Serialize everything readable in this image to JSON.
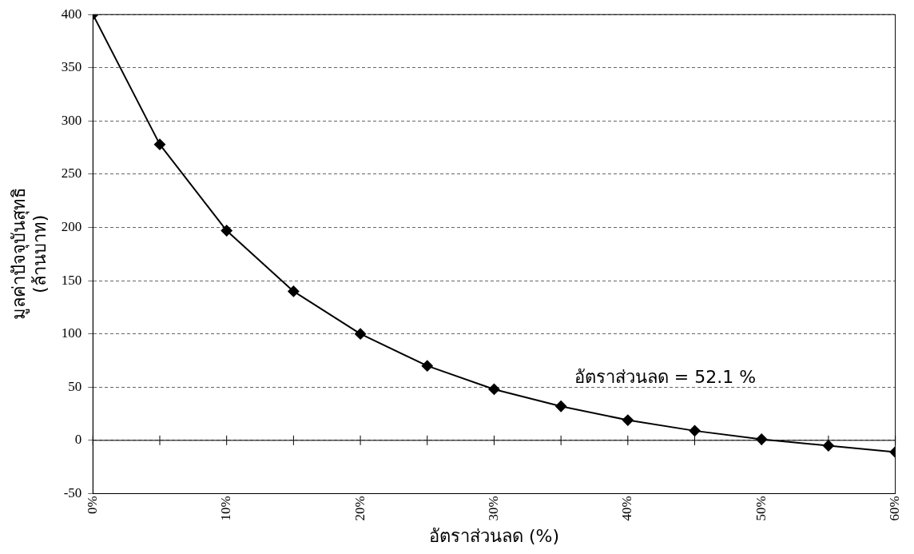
{
  "chart_data": {
    "type": "line",
    "xlabel": "อัตราส่วนลด (%)",
    "ylabel": "มูลค่าปัจจุบันสุทธิ\n(ล้านบาท)",
    "x": [
      0,
      5,
      10,
      15,
      20,
      25,
      30,
      35,
      40,
      45,
      50,
      55,
      60
    ],
    "series": [
      {
        "color": "#000000",
        "values": [
          400,
          278,
          197,
          140,
          100,
          70,
          48,
          32,
          19,
          9,
          1,
          -5,
          -11
        ]
      }
    ],
    "xlim": [
      0,
      60
    ],
    "xticks": [
      {
        "value": 0,
        "label": "0%"
      },
      {
        "value": 5,
        "label": null
      },
      {
        "value": 10,
        "label": "10%"
      },
      {
        "value": 15,
        "label": null
      },
      {
        "value": 20,
        "label": "20%"
      },
      {
        "value": 25,
        "label": null
      },
      {
        "value": 30,
        "label": "30%"
      },
      {
        "value": 35,
        "label": null
      },
      {
        "value": 40,
        "label": "40%"
      },
      {
        "value": 45,
        "label": null
      },
      {
        "value": 50,
        "label": "50%"
      },
      {
        "value": 55,
        "label": null
      },
      {
        "value": 60,
        "label": "60%"
      }
    ],
    "ylim": [
      -50,
      400
    ],
    "yticks": [
      -50,
      0,
      50,
      100,
      150,
      200,
      250,
      300,
      350,
      400
    ],
    "grid": "y",
    "legend": false,
    "marker": "diamond",
    "line_style": "solid",
    "annotations": [
      "อัตราส่วนลด = 52.1 %"
    ]
  }
}
